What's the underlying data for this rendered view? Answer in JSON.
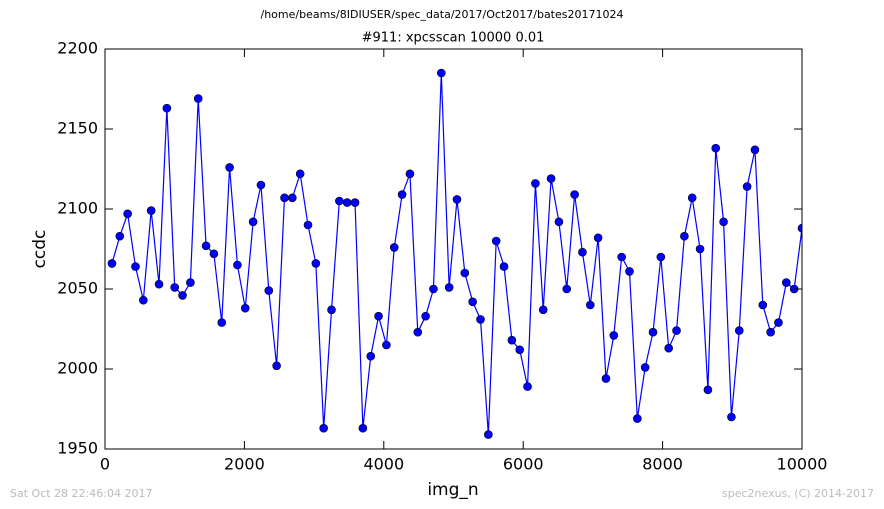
{
  "chart_data": {
    "type": "line",
    "supertitle": "/home/beams/8IDIUSER/spec_data/2017/Oct2017/bates20171024",
    "title": "#911: xpcsscan 10000 0.01",
    "x_label": "img_n",
    "y_label": "ccdc",
    "footer_left": "Sat Oct 28 22:46:04 2017",
    "footer_right": "spec2nexus, (C) 2014-2017",
    "xlim": [
      0,
      10000
    ],
    "xticks": [
      0,
      2000,
      4000,
      6000,
      8000,
      10000
    ],
    "ylim": [
      1950,
      2200
    ],
    "yticks": [
      1950,
      2000,
      2050,
      2100,
      2150,
      2200
    ],
    "grid": false,
    "x": [
      100,
      212.5,
      325,
      437.5,
      550,
      662.5,
      775,
      887.5,
      1000,
      1112.5,
      1225,
      1337.5,
      1450,
      1562.5,
      1675,
      1787.5,
      1900,
      2012.5,
      2125,
      2237.5,
      2350,
      2462.5,
      2575,
      2687.5,
      2800,
      2912.5,
      3025,
      3137.5,
      3250,
      3362.5,
      3475,
      3587.5,
      3700,
      3812.5,
      3925,
      4037.5,
      4150,
      4262.5,
      4375,
      4487.5,
      4600,
      4712.5,
      4825,
      4937.5,
      5050,
      5162.5,
      5275,
      5387.5,
      5500,
      5612.5,
      5725,
      5837.5,
      5950,
      6062.5,
      6175,
      6287.5,
      6400,
      6512.5,
      6625,
      6737.5,
      6850,
      6962.5,
      7075,
      7187.5,
      7300,
      7412.5,
      7525,
      7637.5,
      7750,
      7862.5,
      7975,
      8087.5,
      8200,
      8312.5,
      8425,
      8537.5,
      8650,
      8762.5,
      8875,
      8987.5,
      9100,
      9212.5,
      9325,
      9437.5,
      9550,
      9662.5,
      9775,
      9887.5,
      10000
    ],
    "series": [
      {
        "name": "ccdc",
        "color": "#0000ff",
        "values": [
          2066,
          2083,
          2097,
          2064,
          2043,
          2099,
          2053,
          2163,
          2051,
          2046,
          2054,
          2169,
          2077,
          2072,
          2029,
          2126,
          2065,
          2038,
          2092,
          2115,
          2049,
          2002,
          2107,
          2107,
          2122,
          2090,
          2066,
          1963,
          2037,
          2105,
          2104,
          2104,
          1963,
          2008,
          2033,
          2015,
          2076,
          2109,
          2122,
          2023,
          2033,
          2050,
          2185,
          2051,
          2106,
          2060,
          2042,
          2031,
          1959,
          2080,
          2064,
          2018,
          2012,
          1989,
          2116,
          2037,
          2119,
          2092,
          2050,
          2109,
          2073,
          2040,
          2082,
          1994,
          2021,
          2070,
          2061,
          1969,
          2001,
          2023,
          2070,
          2013,
          2024,
          2083,
          2107,
          2075,
          1987,
          2138,
          2092,
          1970,
          2024,
          2114,
          2137,
          2040,
          2023,
          2029,
          2054,
          2050,
          2088
        ]
      }
    ]
  }
}
